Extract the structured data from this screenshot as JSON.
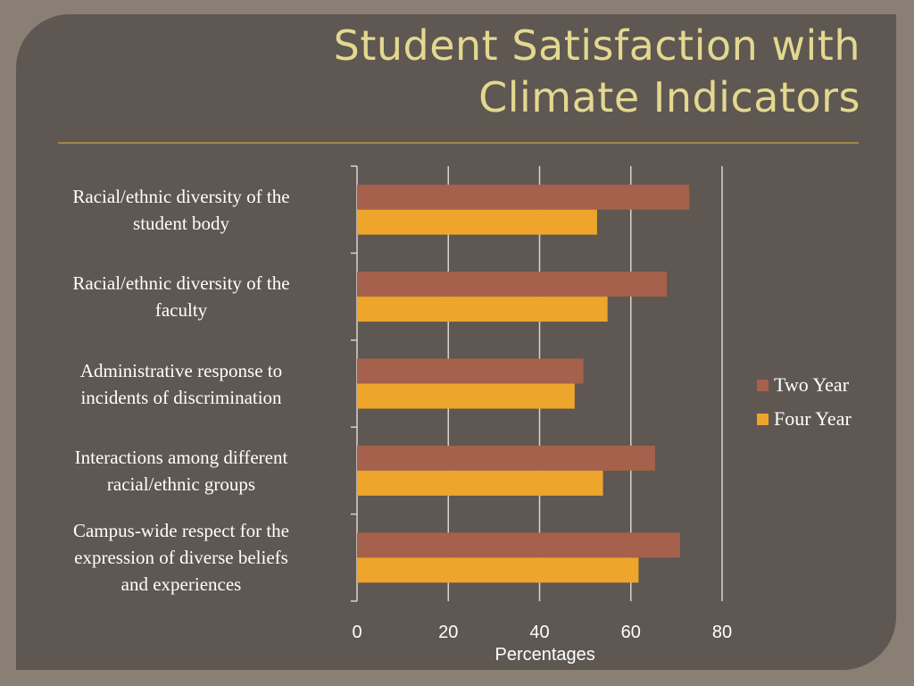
{
  "title_line1": "Student Satisfaction with",
  "title_line2": "Climate Indicators",
  "chart_data": {
    "type": "bar",
    "orientation": "horizontal",
    "categories": [
      "Racial/ethnic diversity of the student body",
      "Racial/ethnic diversity of the faculty",
      "Administrative response to incidents of discrimination",
      "Interactions among different racial/ethnic groups",
      "Campus-wide respect for the expression of diverse beliefs and experiences"
    ],
    "category_lines": [
      [
        "Racial/ethnic diversity of the",
        "student body"
      ],
      [
        "Racial/ethnic diversity of the",
        "faculty"
      ],
      [
        "Administrative response to",
        "incidents of discrimination"
      ],
      [
        "Interactions among different",
        "racial/ethnic groups"
      ],
      [
        "Campus-wide respect for the",
        "expression of diverse beliefs",
        "and experiences"
      ]
    ],
    "series": [
      {
        "name": "Two Year",
        "color": "#a5614b",
        "values": [
          72.8,
          67.9,
          49.6,
          65.3,
          70.8
        ]
      },
      {
        "name": "Four Year",
        "color": "#eda52b",
        "values": [
          52.6,
          54.9,
          47.7,
          53.9,
          61.7
        ]
      }
    ],
    "xlabel": "Percentages",
    "xlim": [
      0,
      80
    ],
    "xticks": [
      "0",
      "20",
      "40",
      "60",
      "80"
    ],
    "grid": true,
    "legend": "right"
  }
}
